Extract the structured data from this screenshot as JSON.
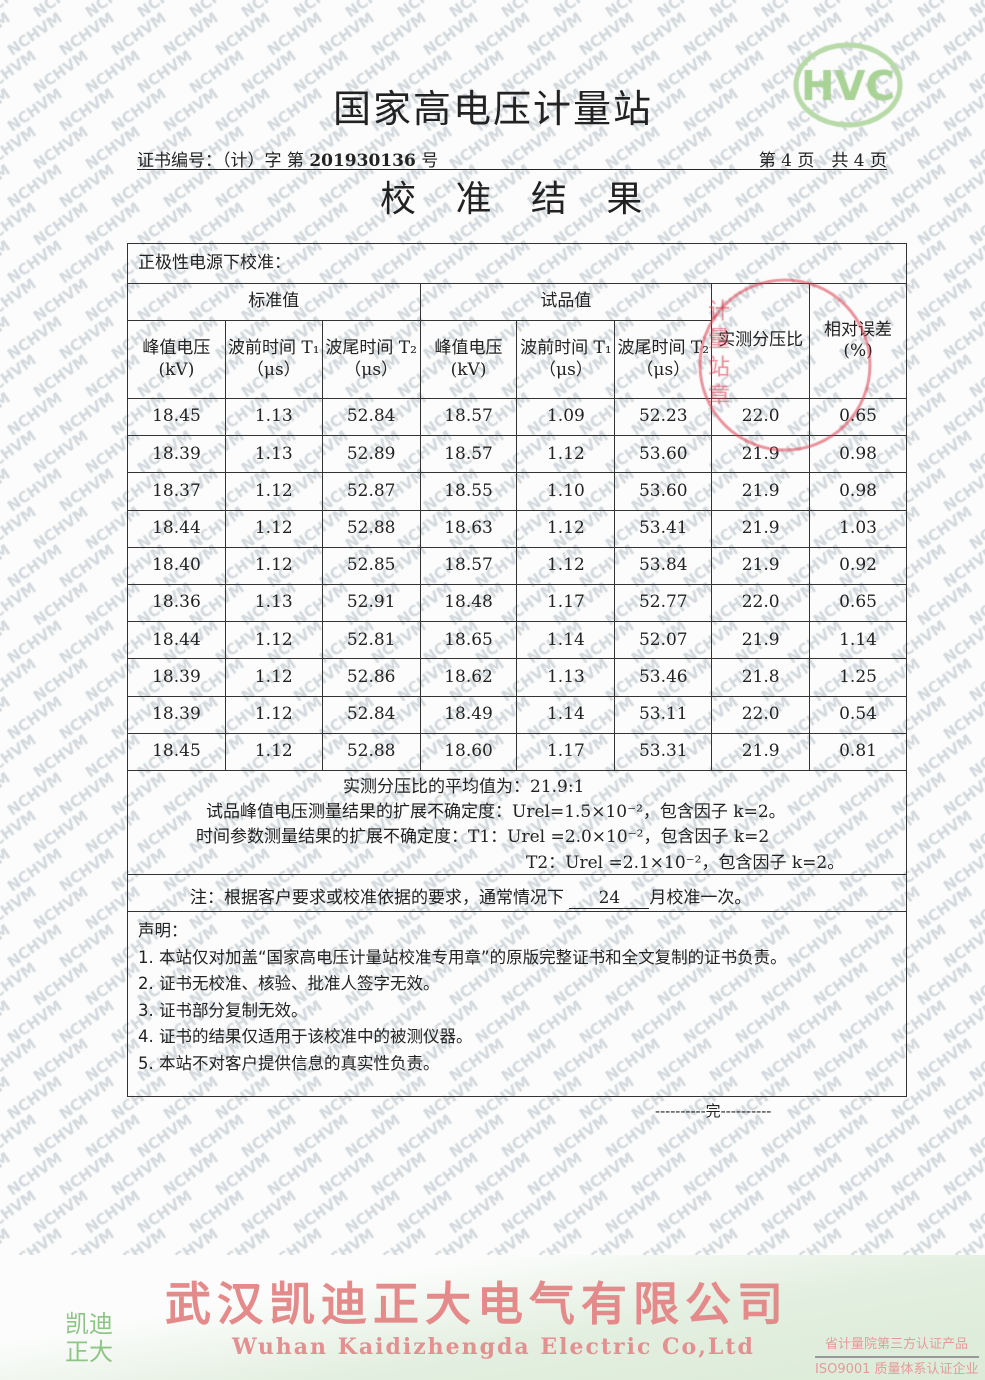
{
  "watermark": "NCHVM",
  "title": "国家高电压计量站",
  "cert_label": "证书编号：（计）字 第",
  "cert_no": "201930136",
  "cert_suffix": "号",
  "page": "第 4 页　共 4 页",
  "subtitle": "校 准 结 果",
  "logo_text": "HVC",
  "table": {
    "caption": "正极性电源下校准：",
    "group_std": "标准值",
    "group_test": "试品值",
    "col_ratio": "实测分压比",
    "col_err": "相对误差(%)",
    "col_peak": "峰值电压(kV)",
    "col_t1": "波前时间 T₁ （μs）",
    "col_t2": "波尾时间 T₂ （μs）",
    "rows": [
      [
        "18.45",
        "1.13",
        "52.84",
        "18.57",
        "1.09",
        "52.23",
        "22.0",
        "0.65"
      ],
      [
        "18.39",
        "1.13",
        "52.89",
        "18.57",
        "1.12",
        "53.60",
        "21.9",
        "0.98"
      ],
      [
        "18.37",
        "1.12",
        "52.87",
        "18.55",
        "1.10",
        "53.60",
        "21.9",
        "0.98"
      ],
      [
        "18.44",
        "1.12",
        "52.88",
        "18.63",
        "1.12",
        "53.41",
        "21.9",
        "1.03"
      ],
      [
        "18.40",
        "1.12",
        "52.85",
        "18.57",
        "1.12",
        "53.84",
        "21.9",
        "0.92"
      ],
      [
        "18.36",
        "1.13",
        "52.91",
        "18.48",
        "1.17",
        "52.77",
        "22.0",
        "0.65"
      ],
      [
        "18.44",
        "1.12",
        "52.81",
        "18.65",
        "1.14",
        "52.07",
        "21.9",
        "1.14"
      ],
      [
        "18.39",
        "1.12",
        "52.86",
        "18.62",
        "1.13",
        "53.46",
        "21.8",
        "1.25"
      ],
      [
        "18.39",
        "1.12",
        "52.84",
        "18.49",
        "1.14",
        "53.11",
        "22.0",
        "0.54"
      ],
      [
        "18.45",
        "1.12",
        "52.88",
        "18.60",
        "1.17",
        "53.31",
        "21.9",
        "0.81"
      ]
    ]
  },
  "summary": {
    "avg": "实测分压比的平均值为：21.9:1",
    "u_peak": "试品峰值电压测量结果的扩展不确定度：Urel=1.5×10⁻²，包含因子 k=2。",
    "u_t1": "时间参数测量结果的扩展不确定度：T1：Urel =2.0×10⁻²，包含因子 k=2",
    "u_t2": "T2：Urel =2.1×10⁻²，包含因子 k=2。"
  },
  "note": {
    "prefix": "注：根据客户要求或校准依据的要求，通常情况下",
    "months": "24",
    "suffix": "月校准一次。"
  },
  "statement": {
    "heading": "声明：",
    "items": [
      "1. 本站仅对加盖“国家高电压计量站校准专用章”的原版完整证书和全文复制的证书负责。",
      "2. 证书无校准、核验、批准人签字无效。",
      "3. 证书部分复制无效。",
      "4. 证书的结果仅适用于该校准中的被测仪器。",
      "5. 本站不对客户提供信息的真实性负责。"
    ]
  },
  "end": "----------完----------",
  "stamp_text": "计量站章",
  "footer": {
    "company_cn": "武汉凯迪正大电气有限公司",
    "company_en": "Wuhan Kaidizhengda Electric Co,Ltd",
    "brand": "凯迪正大",
    "cert1": "省计量院第三方认证产品",
    "cert2": "ISO9001 质量体系认证企业"
  }
}
